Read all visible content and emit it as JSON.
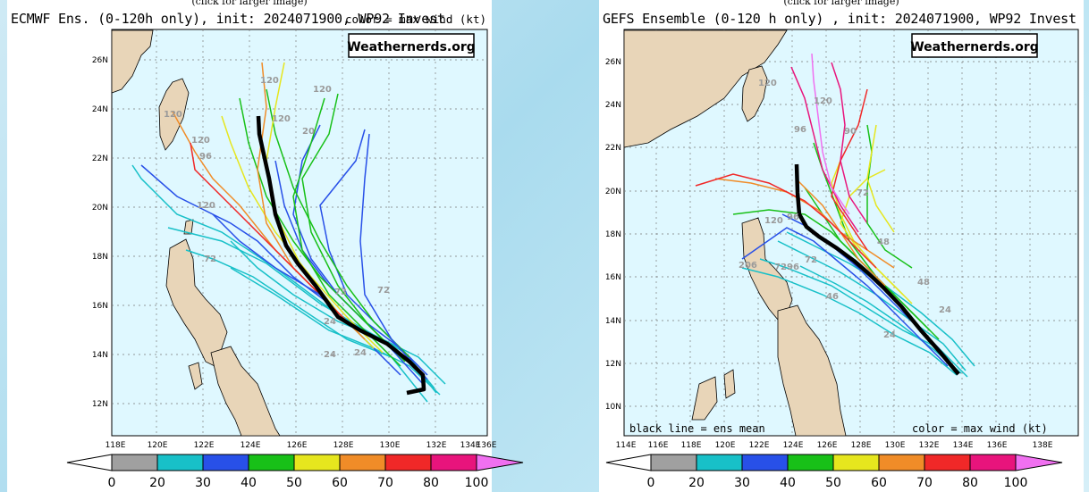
{
  "panels": [
    {
      "id": "ecmwf",
      "click_note": "(click for larger image)",
      "title": "ECMWF Ens. (0-120h only), init: 2024071900, WP92 Invest",
      "legend": "color = max wind (kt)",
      "watermark": "Weathernerds.org",
      "lon_ticks": [
        "118E",
        "120E",
        "122E",
        "124E",
        "126E",
        "128E",
        "130E",
        "132E",
        "134E",
        "136E"
      ],
      "lat_ticks": [
        "12N",
        "14N",
        "16N",
        "18N",
        "20N",
        "22N",
        "24N",
        "26N"
      ],
      "map_labels": [
        "120",
        "120",
        "120",
        "20",
        "120",
        "120",
        "96",
        "120",
        "72",
        "72",
        "24",
        "24",
        "24",
        "73"
      ],
      "bottom_note": ""
    },
    {
      "id": "gefs",
      "click_note": "(click for larger image)",
      "title": "GEFS Ensemble (0-120 h only) , init: 2024071900, WP92 Invest",
      "legend": "",
      "watermark": "Weathernerds.org",
      "lon_ticks": [
        "114E",
        "116E",
        "118E",
        "120E",
        "122E",
        "124E",
        "126E",
        "128E",
        "130E",
        "132E",
        "134E",
        "136E",
        "138E"
      ],
      "lat_ticks": [
        "10N",
        "12N",
        "14N",
        "16N",
        "18N",
        "20N",
        "22N",
        "24N",
        "26N"
      ],
      "map_labels": [
        "120",
        "120",
        "96",
        "90",
        "72",
        "96",
        "120",
        "72",
        "96",
        "48",
        "46",
        "48",
        "24",
        "24",
        "206",
        "72"
      ],
      "bottom_note_left": "black line = ens mean",
      "bottom_note_right": "color = max wind (kt)"
    }
  ],
  "colorbar": {
    "labels": [
      "0",
      "20",
      "30",
      "40",
      "50",
      "60",
      "70",
      "80",
      "100"
    ],
    "colors": [
      "#a0a0a0",
      "#18c0c8",
      "#2850e8",
      "#18c018",
      "#e6e61e",
      "#f08c28",
      "#f02828",
      "#e8147c",
      "#f070f0"
    ]
  }
}
